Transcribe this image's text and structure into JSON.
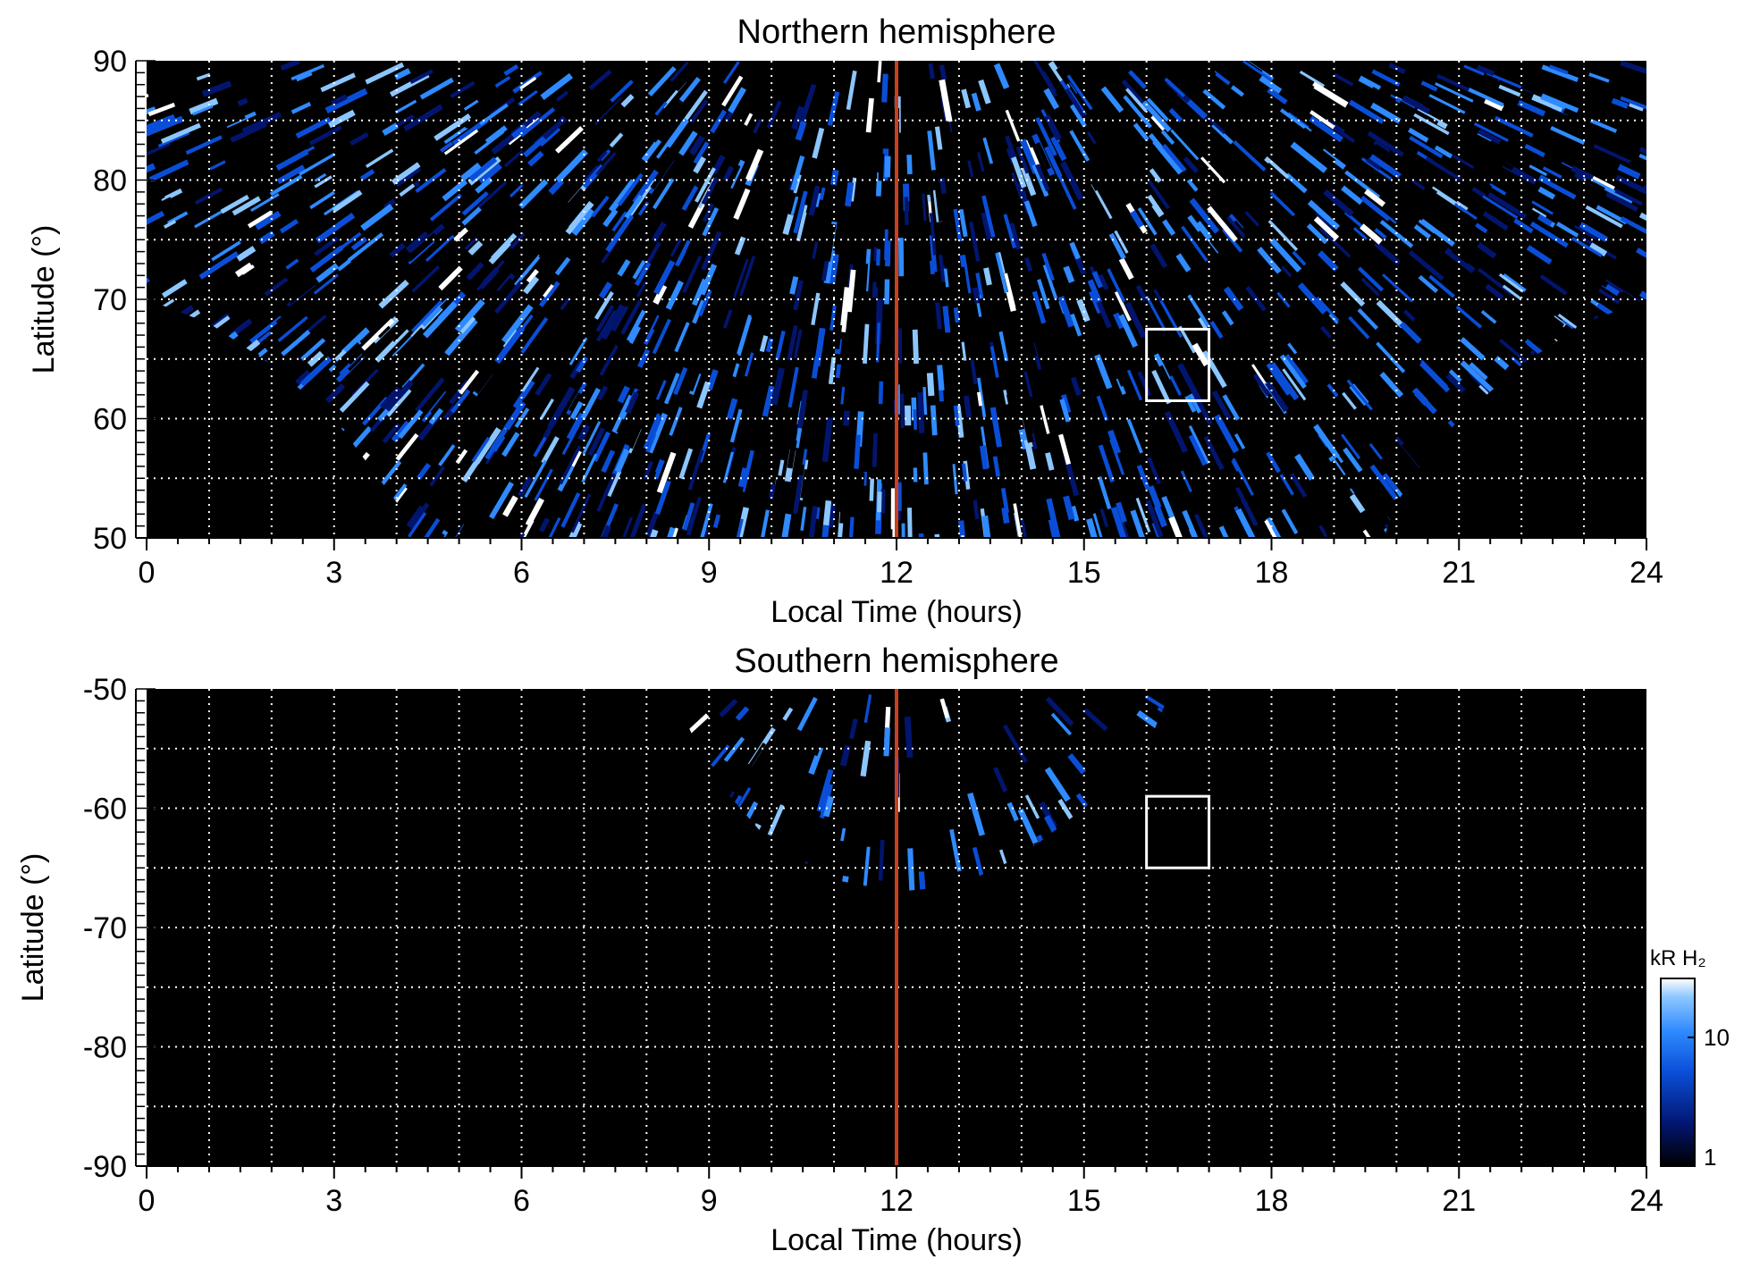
{
  "chart_data": [
    {
      "type": "heatmap",
      "title": "Northern hemisphere",
      "xlabel": "Local Time (hours)",
      "ylabel": "Latitude (°)",
      "xlim": [
        0,
        24
      ],
      "ylim": [
        50,
        90
      ],
      "x_ticks": [
        "0",
        "3",
        "6",
        "9",
        "12",
        "15",
        "18",
        "21",
        "24"
      ],
      "y_ticks": [
        "50",
        "60",
        "70",
        "80",
        "90"
      ],
      "grid": true,
      "grid_x_step_hours": 1,
      "grid_y_step_deg": 5,
      "marker_line": {
        "x": 12,
        "color": "#c8401e"
      },
      "box": {
        "x": [
          16,
          17
        ],
        "y": [
          61.5,
          67.5
        ],
        "color": "#ffffff"
      },
      "coverage_lower_boundary": [
        {
          "x": 0,
          "y": 70
        },
        {
          "x": 1,
          "y": 68
        },
        {
          "x": 2,
          "y": 64.5
        },
        {
          "x": 3,
          "y": 60
        },
        {
          "x": 4,
          "y": 53
        },
        {
          "x": 4.2,
          "y": 50
        },
        {
          "x": 19.8,
          "y": 50
        },
        {
          "x": 20,
          "y": 53
        },
        {
          "x": 21,
          "y": 60
        },
        {
          "x": 22,
          "y": 64.5
        },
        {
          "x": 23,
          "y": 68
        },
        {
          "x": 24,
          "y": 70
        }
      ]
    },
    {
      "type": "heatmap",
      "title": "Southern hemisphere",
      "xlabel": "Local Time (hours)",
      "ylabel": "Latitude (°)",
      "xlim": [
        0,
        24
      ],
      "ylim": [
        -90,
        -50
      ],
      "x_ticks": [
        "0",
        "3",
        "6",
        "9",
        "12",
        "15",
        "18",
        "21",
        "24"
      ],
      "y_ticks": [
        "-50",
        "-60",
        "-70",
        "-80",
        "-90"
      ],
      "grid": true,
      "grid_x_step_hours": 1,
      "grid_y_step_deg": 5,
      "marker_line": {
        "x": 12,
        "color": "#c8401e"
      },
      "box": {
        "x": [
          16,
          17
        ],
        "y": [
          -65,
          -59
        ],
        "color": "#ffffff"
      },
      "coverage_edge": [
        {
          "x": 8.4,
          "y": -50
        },
        {
          "x": 9,
          "y": -57
        },
        {
          "x": 10,
          "y": -63
        },
        {
          "x": 11,
          "y": -66
        },
        {
          "x": 12,
          "y": -67
        },
        {
          "x": 13,
          "y": -66.5
        },
        {
          "x": 14,
          "y": -64
        },
        {
          "x": 15,
          "y": -60
        },
        {
          "x": 16,
          "y": -55
        },
        {
          "x": 16.4,
          "y": -50
        }
      ]
    }
  ],
  "colorbar": {
    "label": "kR H₂",
    "ticks": [
      "1",
      "10"
    ],
    "scale": "log",
    "colors": [
      "#000000",
      "#02156e",
      "#0a4ed8",
      "#2f8bff",
      "#8cc6ff",
      "#ffffff"
    ]
  }
}
